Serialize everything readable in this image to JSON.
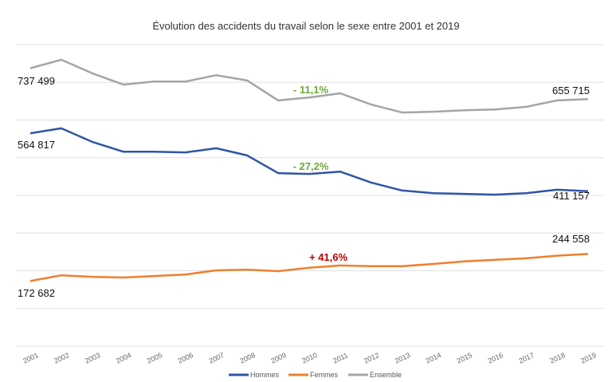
{
  "chart_data": {
    "type": "line",
    "title": "Évolution des accidents du travail selon le sexe entre 2001 et 2019",
    "xlabel": "",
    "ylabel": "",
    "ylim": [
      0,
      800000
    ],
    "grid": true,
    "y_tick_labels_shown": false,
    "legend_position": "bottom",
    "categories": [
      "2001",
      "2002",
      "2003",
      "2004",
      "2005",
      "2006",
      "2007",
      "2008",
      "2009",
      "2010",
      "2011",
      "2012",
      "2013",
      "2014",
      "2015",
      "2016",
      "2017",
      "2018",
      "2019"
    ],
    "series": [
      {
        "name": "Hommes",
        "color": "#2f55a4",
        "values": [
          564817,
          578000,
          542000,
          516000,
          516000,
          514000,
          525000,
          506000,
          459000,
          457000,
          463000,
          434000,
          413000,
          406000,
          404000,
          402000,
          406000,
          415000,
          411157
        ]
      },
      {
        "name": "Femmes",
        "color": "#f07f2e",
        "values": [
          172682,
          188000,
          184000,
          182000,
          186000,
          190000,
          201000,
          203000,
          199000,
          208000,
          214000,
          212000,
          212000,
          218000,
          225000,
          229000,
          233000,
          240000,
          244558
        ]
      },
      {
        "name": "Ensemble",
        "color": "#a5a5a5",
        "values": [
          737499,
          760000,
          724000,
          694000,
          702000,
          702000,
          719000,
          705000,
          652000,
          660000,
          671000,
          641000,
          620000,
          622000,
          626000,
          628000,
          635000,
          652000,
          655715
        ]
      }
    ],
    "data_labels": {
      "ensemble_start": "737 499",
      "ensemble_end": "655 715",
      "hommes_start": "564 817",
      "hommes_end": "411 157",
      "femmes_start": "172 682",
      "femmes_end": "244 558"
    },
    "annotations": {
      "ensemble_change": {
        "text": "- 11,1%",
        "color": "#6aaa3a"
      },
      "hommes_change": {
        "text": "- 27,2%",
        "color": "#6aaa3a"
      },
      "femmes_change": {
        "text": "+ 41,6%",
        "color": "#c00000"
      }
    }
  }
}
